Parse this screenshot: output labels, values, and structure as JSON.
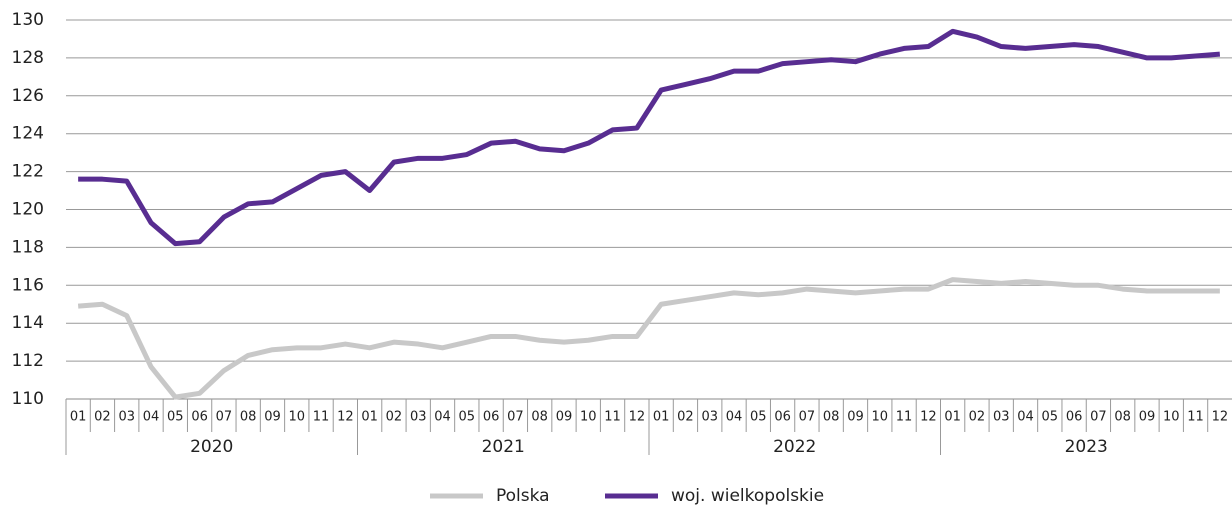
{
  "chart_data": {
    "type": "line",
    "categories": [
      "01",
      "02",
      "03",
      "04",
      "05",
      "06",
      "07",
      "08",
      "09",
      "10",
      "11",
      "12",
      "01",
      "02",
      "03",
      "04",
      "05",
      "06",
      "07",
      "08",
      "09",
      "10",
      "11",
      "12",
      "01",
      "02",
      "03",
      "04",
      "05",
      "06",
      "07",
      "08",
      "09",
      "10",
      "11",
      "12",
      "01",
      "02",
      "03",
      "04",
      "05",
      "06",
      "07",
      "08",
      "09",
      "10",
      "11",
      "12"
    ],
    "year_groups": [
      "2020",
      "2021",
      "2022",
      "2023"
    ],
    "series": [
      {
        "name": "Polska",
        "color": "#c8c8c8",
        "values": [
          114.9,
          115.0,
          114.4,
          111.7,
          110.1,
          110.3,
          111.5,
          112.3,
          112.6,
          112.7,
          112.7,
          112.9,
          112.7,
          113.0,
          112.9,
          112.7,
          113.0,
          113.3,
          113.3,
          113.1,
          113.0,
          113.1,
          113.3,
          113.3,
          115.0,
          115.2,
          115.4,
          115.6,
          115.5,
          115.6,
          115.8,
          115.7,
          115.6,
          115.7,
          115.8,
          115.8,
          116.3,
          116.2,
          116.1,
          116.2,
          116.1,
          116.0,
          116.0,
          115.8,
          115.7,
          115.7,
          115.7,
          115.7
        ]
      },
      {
        "name": "woj. wielkopolskie",
        "color": "#582d91",
        "values": [
          121.6,
          121.6,
          121.5,
          119.3,
          118.2,
          118.3,
          119.6,
          120.3,
          120.4,
          121.1,
          121.8,
          122.0,
          121.0,
          122.5,
          122.7,
          122.7,
          122.9,
          123.5,
          123.6,
          123.2,
          123.1,
          123.5,
          124.2,
          124.3,
          126.3,
          126.6,
          126.9,
          127.3,
          127.3,
          127.7,
          127.8,
          127.9,
          127.8,
          128.2,
          128.5,
          128.6,
          129.4,
          129.1,
          128.6,
          128.5,
          128.6,
          128.7,
          128.6,
          128.3,
          128.0,
          128.0,
          128.1,
          128.2
        ]
      }
    ],
    "ylim": [
      110,
      130
    ],
    "yticks": [
      110,
      112,
      114,
      116,
      118,
      120,
      122,
      124,
      126,
      128,
      130
    ],
    "grid": true,
    "legend": "bottom"
  }
}
